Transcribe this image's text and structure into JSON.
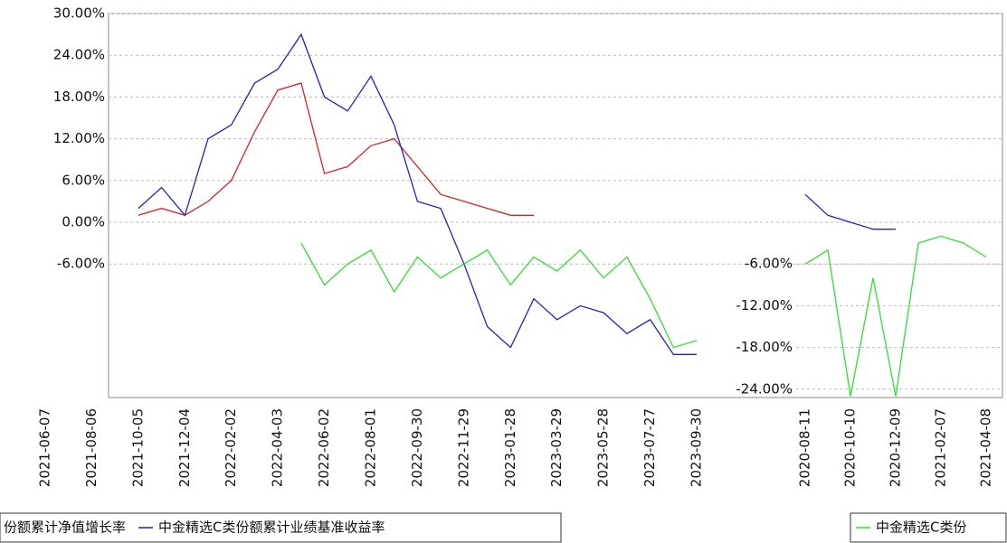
{
  "chart_data": [
    {
      "type": "line",
      "categories": [
        "2021-06-07",
        null,
        "2021-08-06",
        null,
        "2021-10-05",
        null,
        "2021-12-04",
        null,
        "2022-02-02",
        null,
        "2022-04-03",
        null,
        "2022-06-02",
        null,
        "2022-08-01",
        null,
        "2022-09-30",
        null,
        "2022-11-29",
        null,
        "2023-01-28",
        null,
        "2023-03-29",
        null,
        "2023-05-28",
        null,
        "2023-07-27",
        null,
        "2023-09-30"
      ],
      "series": [
        {
          "name": "份额累计净值增长率",
          "color": "#e02020",
          "values": [
            null,
            null,
            null,
            null,
            1,
            2,
            1,
            3,
            6,
            13,
            19,
            20,
            7,
            8,
            11,
            12,
            8,
            4,
            3,
            2,
            1,
            1,
            null,
            null,
            null,
            null,
            null,
            null,
            null
          ]
        },
        {
          "name": "中金精选C类份额累计业绩基准收益率",
          "color": "#2020d0",
          "values": [
            null,
            null,
            null,
            null,
            2,
            5,
            1,
            12,
            14,
            20,
            22,
            27,
            18,
            16,
            21,
            14,
            3,
            2,
            -6,
            -15,
            -18,
            -11,
            -14,
            -12,
            -13,
            -16,
            -14,
            -19,
            -19
          ]
        },
        {
          "color": "#30e030",
          "values": [
            null,
            null,
            null,
            null,
            null,
            null,
            null,
            null,
            null,
            null,
            null,
            -3,
            -9,
            -6,
            -4,
            -10,
            -5,
            -8,
            -6,
            -4,
            -9,
            -5,
            -7,
            -4,
            -8,
            -5,
            -11,
            -18,
            -17
          ]
        }
      ],
      "ylim": [
        -25,
        30
      ],
      "yticks": [
        {
          "value": 30,
          "label": "30.00%"
        },
        {
          "value": 24,
          "label": "24.00%"
        },
        {
          "value": 18,
          "label": "18.00%"
        },
        {
          "value": 12,
          "label": "12.00%"
        },
        {
          "value": 6,
          "label": "6.00%"
        },
        {
          "value": 0,
          "label": "0.00%"
        },
        {
          "value": -6,
          "label": "-6.00%"
        }
      ],
      "grid": true
    },
    {
      "type": "line",
      "categories": [
        "2020-08-11",
        null,
        "2020-10-10",
        null,
        "2020-12-09",
        null,
        "2021-02-07",
        null,
        "2021-04-08"
      ],
      "series": [
        {
          "color": "#2020d0",
          "values": [
            4,
            1,
            0,
            -1,
            -1,
            null,
            null,
            null,
            null
          ]
        },
        {
          "name": "中金精选C类份",
          "color": "#30e030",
          "values": [
            -6,
            -4,
            -25,
            -8,
            -25,
            -3,
            -2,
            -3,
            -5
          ]
        }
      ],
      "ylim": [
        -25,
        30
      ],
      "yticks": [
        {
          "value": -6,
          "label": "-6.00%"
        },
        {
          "value": -12,
          "label": "-12.00%"
        },
        {
          "value": -18,
          "label": "-18.00%"
        },
        {
          "value": -24,
          "label": "-24.00%"
        }
      ],
      "grid": true
    }
  ]
}
